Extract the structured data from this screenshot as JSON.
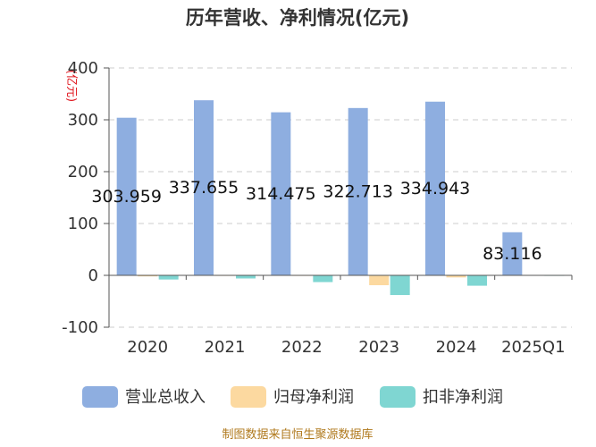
{
  "chart_data": {
    "type": "bar",
    "title": "历年营收、净利情况(亿元)",
    "ylabel": "(亿元)",
    "ylim": [
      -100,
      400
    ],
    "yticks": [
      -100,
      0,
      100,
      200,
      300,
      400
    ],
    "grid": true,
    "legend_position": "bottom",
    "categories": [
      "2020",
      "2021",
      "2022",
      "2023",
      "2024",
      "2025Q1"
    ],
    "series": [
      {
        "name": "营业总收入",
        "color": "#8eaee0",
        "values": [
          303.959,
          337.655,
          314.475,
          322.713,
          334.943,
          83.116
        ],
        "labels": [
          "303.959",
          "337.655",
          "314.475",
          "322.713",
          "334.943",
          "83.116"
        ]
      },
      {
        "name": "归母净利润",
        "color": "#fcd9a0",
        "values": [
          -2,
          -1,
          -1,
          -19,
          -4,
          0.5
        ]
      },
      {
        "name": "扣非净利润",
        "color": "#7fd6d2",
        "values": [
          -8,
          -6,
          -13,
          -38,
          -20,
          -1
        ]
      }
    ]
  },
  "footer": {
    "source": "制图数据来自恒生聚源数据库"
  }
}
